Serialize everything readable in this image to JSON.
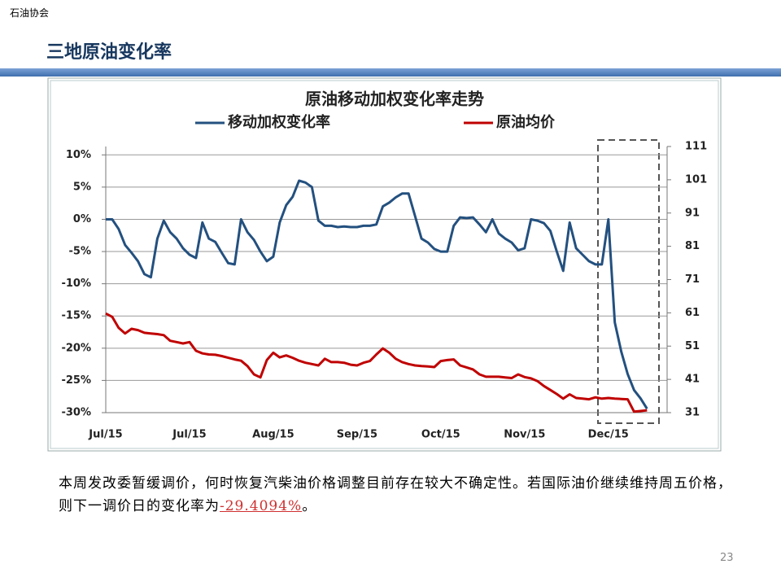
{
  "header": {
    "org": "石油协会",
    "title": "三地原油变化率"
  },
  "chart_data": {
    "type": "line",
    "title": "原油移动加权变化率走势",
    "categories": [
      "Jul/15",
      null,
      null,
      null,
      null,
      null,
      null,
      null,
      null,
      null,
      null,
      null,
      null,
      "Jul/15",
      null,
      null,
      null,
      null,
      null,
      null,
      null,
      null,
      null,
      null,
      null,
      null,
      "Aug/15",
      null,
      null,
      null,
      null,
      null,
      null,
      null,
      null,
      null,
      null,
      null,
      null,
      "Sep/15",
      null,
      null,
      null,
      null,
      null,
      null,
      null,
      null,
      null,
      null,
      null,
      null,
      "Oct/15",
      null,
      null,
      null,
      null,
      null,
      null,
      null,
      null,
      null,
      null,
      null,
      null,
      "Nov/15",
      null,
      null,
      null,
      null,
      null,
      null,
      null,
      null,
      null,
      null,
      null,
      null,
      "Dec/15",
      null,
      null,
      null,
      null,
      null,
      null
    ],
    "series": [
      {
        "name": "移动加权变化率",
        "color": "#23507f",
        "values": [
          0,
          0,
          -1.5,
          -4,
          -5.2,
          -6.5,
          -8.5,
          -9,
          -3,
          -0.2,
          -2,
          -3,
          -4.5,
          -5.5,
          -6,
          -0.5,
          -3,
          -3.5,
          -5.2,
          -6.8,
          -7,
          0,
          -2,
          -3.2,
          -5,
          -6.5,
          -5.8,
          -0.5,
          2.2,
          3.5,
          6,
          5.7,
          5,
          -0.2,
          -1,
          -1,
          -1.2,
          -1.1,
          -1.2,
          -1.2,
          -1,
          -1,
          -0.8,
          2,
          2.6,
          3.4,
          4,
          4,
          0.5,
          -3,
          -3.6,
          -4.6,
          -5,
          -5,
          -1,
          0.3,
          0.2,
          0.3,
          -0.8,
          -2,
          0,
          -2.2,
          -3,
          -3.6,
          -4.8,
          -4.5,
          0,
          -0.2,
          -0.6,
          -1.8,
          -5,
          -8,
          -0.5,
          -4.5,
          -5.5,
          -6.5,
          -7,
          -7,
          0,
          -16,
          -20.5,
          -24,
          -26.5,
          -27.8,
          -29.4
        ]
      },
      {
        "name": "原油均价",
        "color": "#c00000",
        "axis": "y2",
        "values": [
          60.8,
          59.8,
          56.5,
          54.8,
          56.2,
          55.8,
          55,
          54.8,
          54.6,
          54.3,
          52.6,
          52.2,
          51.8,
          52.2,
          49.6,
          48.8,
          48.5,
          48.4,
          48,
          47.5,
          47,
          46.6,
          45,
          42.5,
          41.6,
          46.8,
          49,
          47.6,
          48.2,
          47.5,
          46.6,
          46,
          45.6,
          45.2,
          47.2,
          46.2,
          46.2,
          46,
          45.4,
          45.2,
          46,
          46.5,
          48.5,
          50.3,
          49,
          47.2,
          46.2,
          45.6,
          45.2,
          45,
          44.9,
          44.7,
          46.5,
          46.8,
          47,
          45.2,
          44.6,
          44,
          42.5,
          41.8,
          41.8,
          41.8,
          41.6,
          41.4,
          42.5,
          41.7,
          41.3,
          40.5,
          39,
          37.8,
          36.6,
          35.2,
          36.5,
          35.4,
          35.2,
          35,
          35.6,
          35.2,
          35.4,
          35.2,
          35.1,
          35,
          31.3,
          31.5,
          31.7
        ]
      }
    ],
    "ylim": [
      -30,
      11.3
    ],
    "yticks": [
      {
        "value": -30,
        "label": "-30%"
      },
      {
        "value": -25,
        "label": "-25%"
      },
      {
        "value": -20,
        "label": "-20%"
      },
      {
        "value": -15,
        "label": "-15%"
      },
      {
        "value": -10,
        "label": "-10%"
      },
      {
        "value": -5,
        "label": "-5%"
      },
      {
        "value": 0,
        "label": "0%"
      },
      {
        "value": 5,
        "label": "5%"
      },
      {
        "value": 10,
        "label": "10%"
      }
    ],
    "y2lim": [
      31,
      111
    ],
    "y2ticks": [
      31,
      41,
      51,
      61,
      71,
      81,
      91,
      101,
      111
    ],
    "grid": true
  },
  "text": {
    "body": "本周发改委暂缓调价，何时恢复汽柴油价格调整目前存在较大不确定性。若国际油价继续维持周五价格，则下一调价日的变化率为",
    "highlight": "-29.4094%",
    "end": "。"
  },
  "page_number": "23"
}
